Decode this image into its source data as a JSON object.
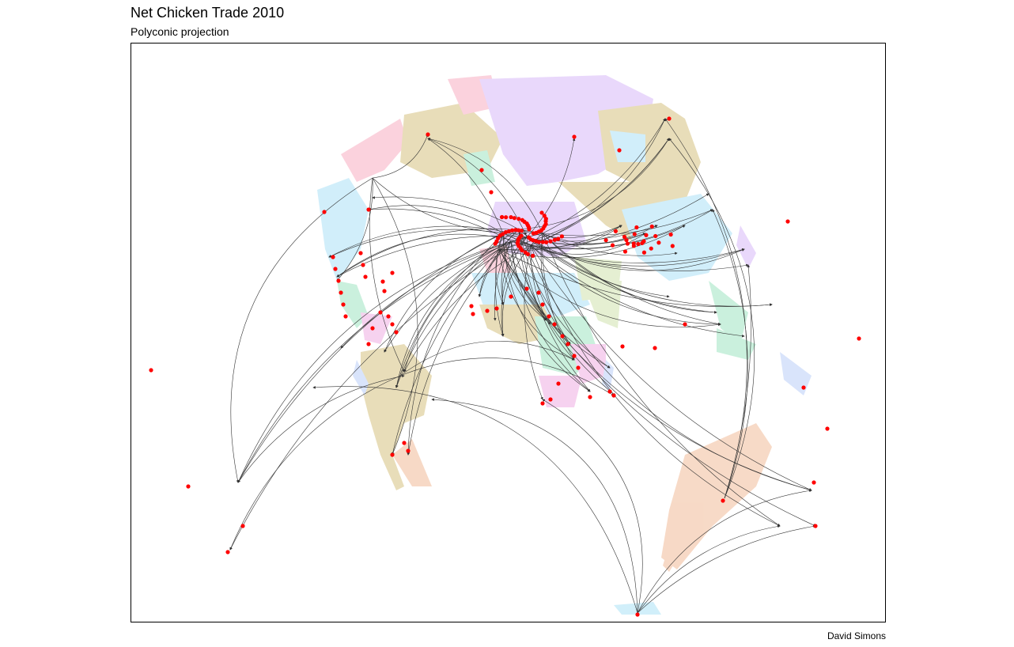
{
  "title": "Net Chicken Trade 2010",
  "subtitle": "Polyconic projection",
  "caption": "David Simons",
  "colors": {
    "point": "#ff0000",
    "flow": "#222222",
    "arrow": "#111111",
    "region_palette": [
      "#fbd0dc",
      "#e7dcb6",
      "#e8d6fb",
      "#cfeefa",
      "#c8f0dc",
      "#f7d8c4",
      "#d7e3fb",
      "#f6d0ef",
      "#e4efd0"
    ]
  },
  "map_data": {
    "type": "flow-map",
    "projection": "polyconic",
    "year": 2010
  }
}
